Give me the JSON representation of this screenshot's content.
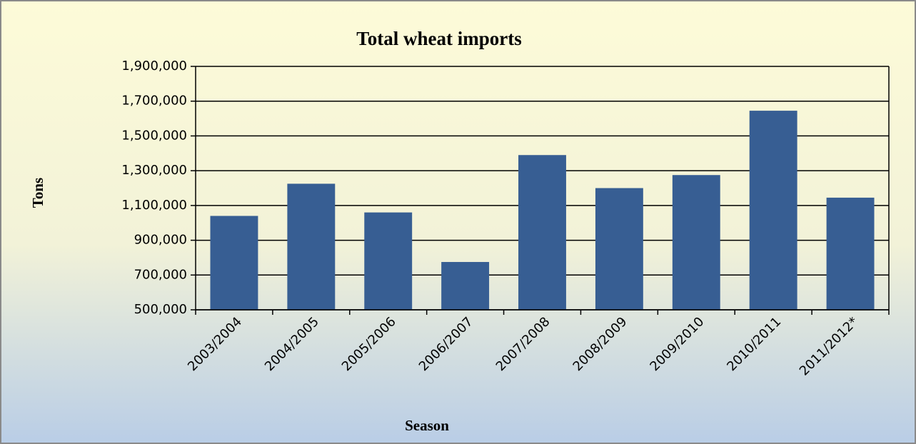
{
  "chart_data": {
    "type": "bar",
    "title": "Total wheat imports",
    "xlabel": "Season",
    "ylabel": "Tons",
    "categories": [
      "2003/2004",
      "2004/2005",
      "2005/2006",
      "2006/2007",
      "2007/2008",
      "2008/2009",
      "2009/2010",
      "2010/2011",
      "2011/2012*"
    ],
    "values": [
      1040000,
      1225000,
      1060000,
      775000,
      1390000,
      1200000,
      1275000,
      1645000,
      1145000
    ],
    "color": "#375e93",
    "ylim": [
      500000,
      1900000
    ],
    "yticks": [
      {
        "value": 500000,
        "label": "500,000"
      },
      {
        "value": 700000,
        "label": "700,000"
      },
      {
        "value": 900000,
        "label": "900,000"
      },
      {
        "value": 1100000,
        "label": "1,100,000"
      },
      {
        "value": 1300000,
        "label": "1,300,000"
      },
      {
        "value": 1500000,
        "label": "1,500,000"
      },
      {
        "value": 1700000,
        "label": "1,700,000"
      },
      {
        "value": 1900000,
        "label": "1,900,000"
      }
    ],
    "grid": true
  }
}
